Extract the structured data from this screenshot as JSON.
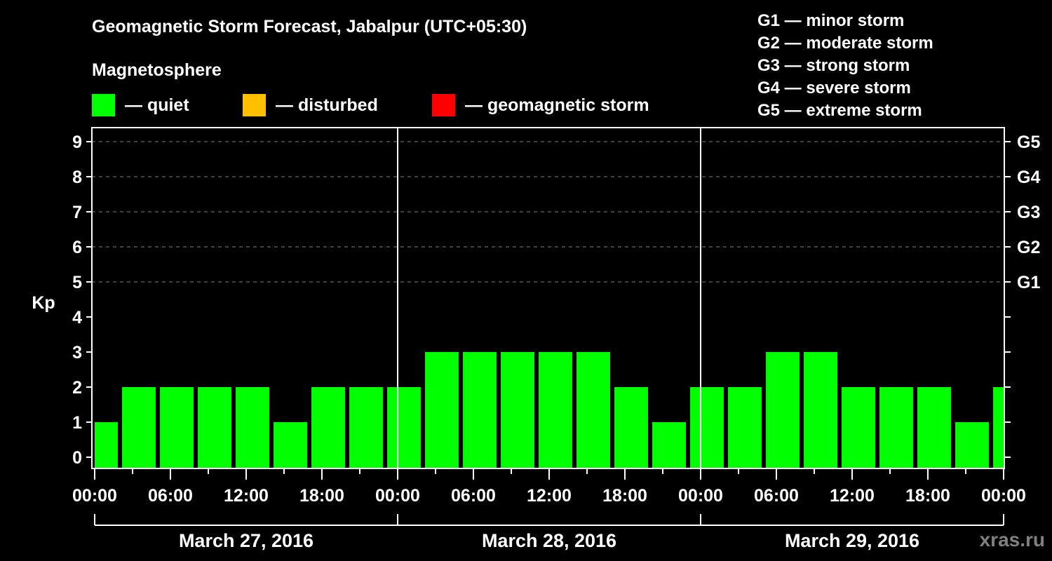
{
  "header": {
    "title": "Geomagnetic Storm Forecast, Jabalpur (UTC+05:30)",
    "subtitle": "Magnetosphere"
  },
  "legend": [
    {
      "label": "— quiet",
      "color": "#00ff00"
    },
    {
      "label": "— disturbed",
      "color": "#ffc000"
    },
    {
      "label": "— geomagnetic storm",
      "color": "#ff0000"
    }
  ],
  "storm_scale": [
    "G1 — minor storm",
    "G2 — moderate storm",
    "G3 — strong storm",
    "G4 — severe storm",
    "G5 — extreme storm"
  ],
  "watermark": "xras.ru",
  "chart_data": {
    "type": "bar",
    "title": "Geomagnetic Storm Forecast, Jabalpur (UTC+05:30)",
    "xlabel": "",
    "ylabel": "Kp",
    "ylim": [
      0,
      9
    ],
    "y_ticks": [
      0,
      1,
      2,
      3,
      4,
      5,
      6,
      7,
      8,
      9
    ],
    "right_axis_labels": [
      {
        "kp": 5,
        "label": "G1"
      },
      {
        "kp": 6,
        "label": "G2"
      },
      {
        "kp": 7,
        "label": "G3"
      },
      {
        "kp": 8,
        "label": "G4"
      },
      {
        "kp": 9,
        "label": "G5"
      }
    ],
    "x_tick_labels": [
      "00:00",
      "06:00",
      "12:00",
      "18:00",
      "00:00",
      "06:00",
      "12:00",
      "18:00",
      "00:00",
      "06:00",
      "12:00",
      "18:00",
      "00:00"
    ],
    "date_labels": [
      "March 27, 2016",
      "March 28, 2016",
      "March 29, 2016"
    ],
    "grid": {
      "horizontal_dashed_at": [
        5,
        6,
        7,
        8,
        9
      ]
    },
    "bar_color": "#00ff00",
    "bars": [
      {
        "start_hour": 0.0,
        "end_hour": 1.83,
        "kp": 1
      },
      {
        "start_hour": 2.17,
        "end_hour": 4.83,
        "kp": 2
      },
      {
        "start_hour": 5.17,
        "end_hour": 7.83,
        "kp": 2
      },
      {
        "start_hour": 8.17,
        "end_hour": 10.83,
        "kp": 2
      },
      {
        "start_hour": 11.17,
        "end_hour": 13.83,
        "kp": 2
      },
      {
        "start_hour": 14.17,
        "end_hour": 16.83,
        "kp": 1
      },
      {
        "start_hour": 17.17,
        "end_hour": 19.83,
        "kp": 2
      },
      {
        "start_hour": 20.17,
        "end_hour": 22.83,
        "kp": 2
      },
      {
        "start_hour": 23.17,
        "end_hour": 25.83,
        "kp": 2
      },
      {
        "start_hour": 26.17,
        "end_hour": 28.83,
        "kp": 3
      },
      {
        "start_hour": 29.17,
        "end_hour": 31.83,
        "kp": 3
      },
      {
        "start_hour": 32.17,
        "end_hour": 34.83,
        "kp": 3
      },
      {
        "start_hour": 35.17,
        "end_hour": 37.83,
        "kp": 3
      },
      {
        "start_hour": 38.17,
        "end_hour": 40.83,
        "kp": 3
      },
      {
        "start_hour": 41.17,
        "end_hour": 43.83,
        "kp": 2
      },
      {
        "start_hour": 44.17,
        "end_hour": 46.83,
        "kp": 1
      },
      {
        "start_hour": 47.17,
        "end_hour": 49.83,
        "kp": 2
      },
      {
        "start_hour": 50.17,
        "end_hour": 52.83,
        "kp": 2
      },
      {
        "start_hour": 53.17,
        "end_hour": 55.83,
        "kp": 3
      },
      {
        "start_hour": 56.17,
        "end_hour": 58.83,
        "kp": 3
      },
      {
        "start_hour": 59.17,
        "end_hour": 61.83,
        "kp": 2
      },
      {
        "start_hour": 62.17,
        "end_hour": 64.83,
        "kp": 2
      },
      {
        "start_hour": 65.17,
        "end_hour": 67.83,
        "kp": 2
      },
      {
        "start_hour": 68.17,
        "end_hour": 70.83,
        "kp": 1
      },
      {
        "start_hour": 71.17,
        "end_hour": 72.0,
        "kp": 2
      }
    ],
    "values": [
      1,
      2,
      2,
      2,
      2,
      1,
      2,
      2,
      2,
      3,
      3,
      3,
      3,
      3,
      2,
      1,
      2,
      2,
      3,
      3,
      2,
      2,
      2,
      1,
      2
    ]
  }
}
